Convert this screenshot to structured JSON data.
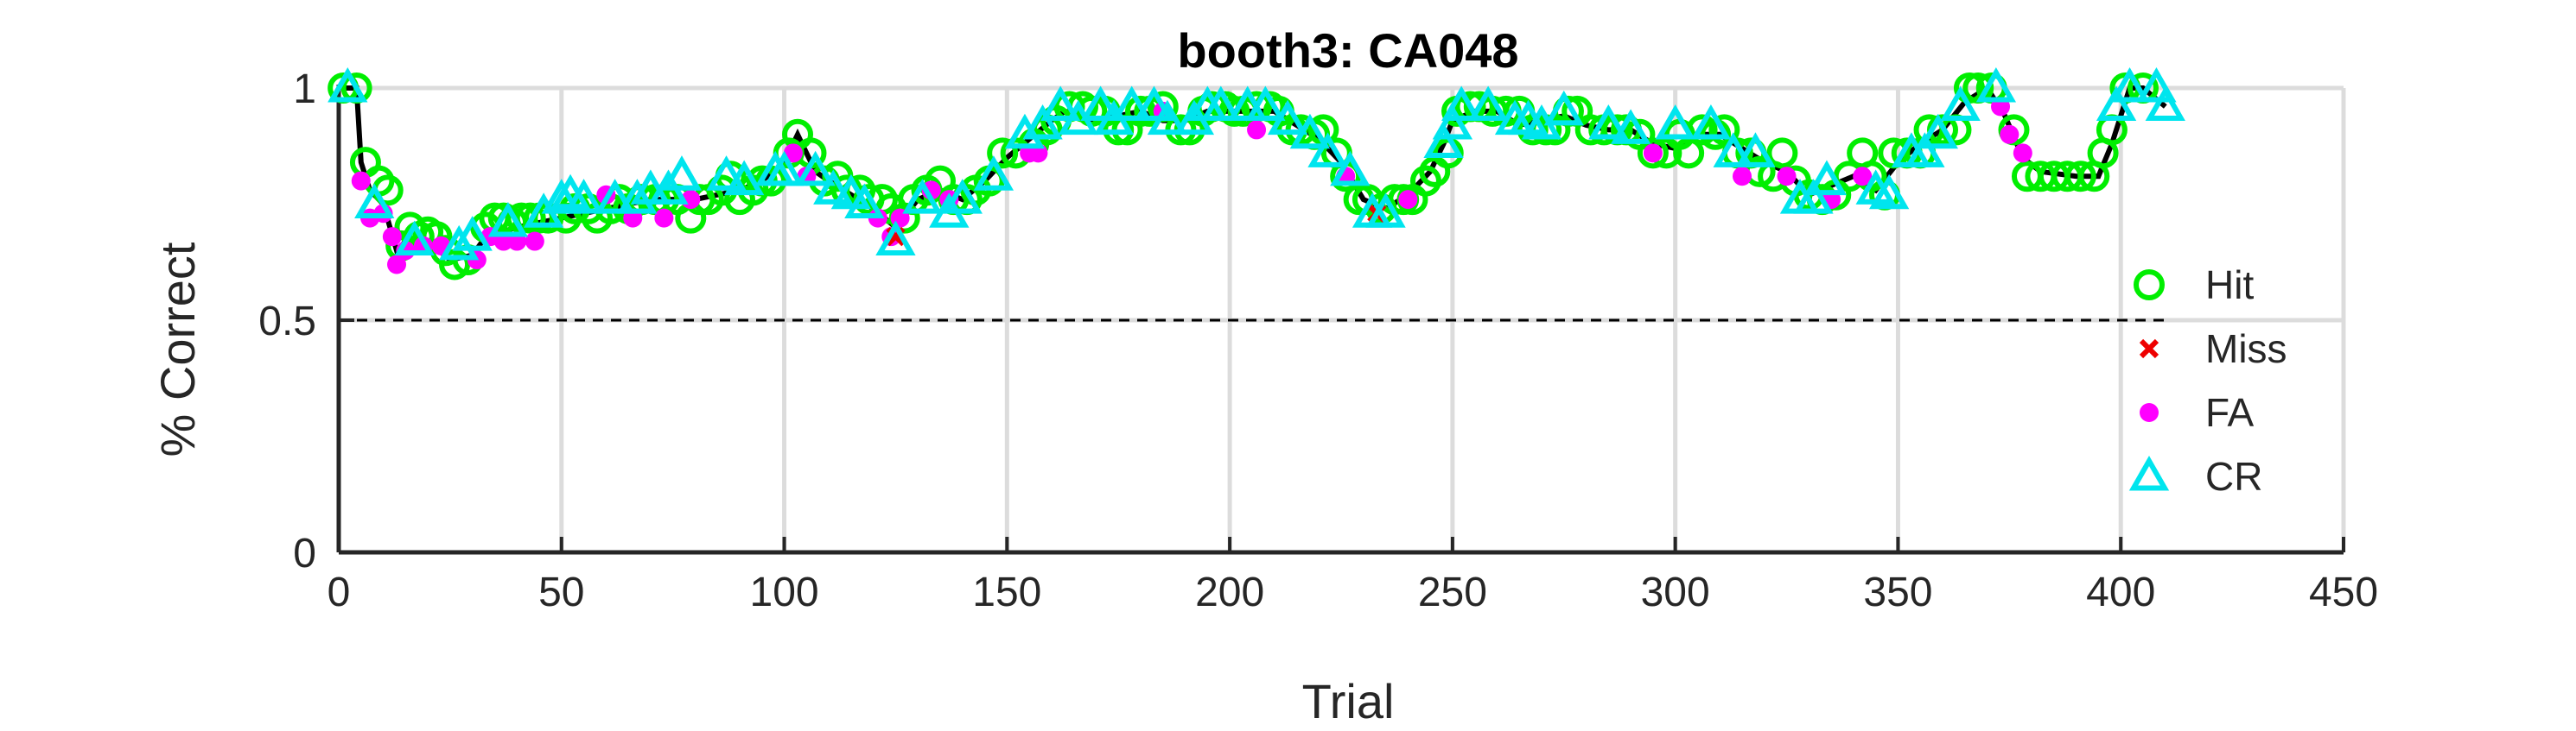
{
  "chart_data": {
    "type": "scatter",
    "title": "booth3: CA048",
    "xlabel": "Trial",
    "ylabel": "% Correct",
    "xlim": [
      0,
      450
    ],
    "ylim": [
      0,
      1
    ],
    "xticks": [
      0,
      50,
      100,
      150,
      200,
      250,
      300,
      350,
      400,
      450
    ],
    "yticks": [
      0,
      0.5,
      1
    ],
    "ytick_labels": [
      "0",
      "0.5",
      "1"
    ],
    "grid": true,
    "reference_line": {
      "y": 0.5,
      "style": "dashed"
    },
    "legend_position": "right",
    "colors": {
      "Hit": "#00ee00",
      "Miss": "#ee0000",
      "FA": "#ff00ff",
      "CR": "#00e5ee",
      "line": "#000000"
    },
    "line_profile": {
      "x": [
        1,
        4,
        5,
        7,
        10,
        13,
        15,
        20,
        25,
        30,
        33,
        40,
        50,
        60,
        70,
        80,
        90,
        95,
        100,
        103,
        107,
        110,
        115,
        120,
        125,
        130,
        135,
        140,
        145,
        150,
        155,
        160,
        163,
        170,
        175,
        180,
        185,
        190,
        195,
        200,
        205,
        210,
        215,
        220,
        225,
        230,
        235,
        240,
        245,
        248,
        250,
        255,
        260,
        265,
        270,
        275,
        280,
        285,
        290,
        295,
        300,
        305,
        310,
        315,
        320,
        325,
        330,
        335,
        340,
        345,
        350,
        355,
        360,
        365,
        370,
        374,
        378,
        382,
        390,
        395,
        398,
        402,
        405,
        410
      ],
      "y": [
        1,
        1,
        0.84,
        0.78,
        0.75,
        0.65,
        0.67,
        0.67,
        0.63,
        0.64,
        0.68,
        0.7,
        0.72,
        0.74,
        0.76,
        0.76,
        0.78,
        0.8,
        0.84,
        0.9,
        0.82,
        0.8,
        0.77,
        0.74,
        0.7,
        0.76,
        0.78,
        0.76,
        0.8,
        0.85,
        0.89,
        0.93,
        0.95,
        0.93,
        0.94,
        0.95,
        0.93,
        0.93,
        0.95,
        0.95,
        0.95,
        0.95,
        0.92,
        0.89,
        0.84,
        0.76,
        0.74,
        0.77,
        0.82,
        0.88,
        0.93,
        0.95,
        0.95,
        0.92,
        0.93,
        0.94,
        0.92,
        0.91,
        0.91,
        0.88,
        0.87,
        0.9,
        0.9,
        0.87,
        0.84,
        0.82,
        0.77,
        0.79,
        0.81,
        0.78,
        0.84,
        0.88,
        0.91,
        0.97,
        1,
        0.94,
        0.85,
        0.82,
        0.81,
        0.81,
        0.88,
        1,
        1,
        0.96
      ]
    },
    "series": [
      {
        "name": "Hit",
        "marker": "circle-open",
        "x": [
          1,
          4,
          6,
          9,
          11,
          14,
          16,
          18,
          20,
          22,
          24,
          26,
          29,
          33,
          35,
          37,
          39,
          41,
          43,
          45,
          47,
          51,
          53,
          56,
          58,
          61,
          63,
          65,
          68,
          71,
          73,
          76,
          79,
          81,
          83,
          86,
          88,
          90,
          93,
          95,
          97,
          101,
          103,
          106,
          109,
          112,
          114,
          117,
          119,
          122,
          124,
          127,
          129,
          132,
          135,
          138,
          141,
          143,
          146,
          149,
          152,
          156,
          159,
          161,
          164,
          167,
          169,
          172,
          175,
          177,
          180,
          182,
          185,
          189,
          191,
          194,
          196,
          199,
          201,
          203,
          206,
          209,
          211,
          214,
          216,
          219,
          221,
          224,
          226,
          229,
          231,
          234,
          237,
          239,
          241,
          244,
          246,
          249,
          251,
          254,
          256,
          259,
          262,
          265,
          268,
          271,
          273,
          276,
          278,
          281,
          284,
          287,
          289,
          292,
          295,
          298,
          301,
          303,
          306,
          309,
          311,
          314,
          317,
          319,
          322,
          324,
          327,
          330,
          333,
          336,
          339,
          342,
          344,
          347,
          349,
          352,
          355,
          357,
          360,
          363,
          366,
          368,
          371,
          376,
          379,
          382,
          385,
          388,
          391,
          394,
          396,
          398,
          401,
          405
        ],
        "y": [
          1,
          1,
          0.84,
          0.8,
          0.78,
          0.66,
          0.7,
          0.68,
          0.69,
          0.68,
          0.65,
          0.62,
          0.63,
          0.7,
          0.72,
          0.72,
          0.71,
          0.72,
          0.72,
          0.72,
          0.72,
          0.72,
          0.74,
          0.74,
          0.72,
          0.74,
          0.76,
          0.74,
          0.76,
          0.76,
          0.76,
          0.76,
          0.72,
          0.76,
          0.76,
          0.78,
          0.81,
          0.76,
          0.78,
          0.8,
          0.8,
          0.86,
          0.9,
          0.86,
          0.8,
          0.81,
          0.78,
          0.78,
          0.76,
          0.76,
          0.74,
          0.72,
          0.76,
          0.78,
          0.8,
          0.76,
          0.76,
          0.78,
          0.8,
          0.86,
          0.86,
          0.88,
          0.91,
          0.93,
          0.96,
          0.96,
          0.95,
          0.95,
          0.91,
          0.91,
          0.95,
          0.95,
          0.96,
          0.91,
          0.91,
          0.95,
          0.96,
          0.96,
          0.95,
          0.95,
          0.96,
          0.96,
          0.95,
          0.91,
          0.91,
          0.9,
          0.91,
          0.86,
          0.81,
          0.76,
          0.76,
          0.74,
          0.76,
          0.76,
          0.76,
          0.8,
          0.82,
          0.86,
          0.95,
          0.96,
          0.96,
          0.95,
          0.95,
          0.95,
          0.91,
          0.91,
          0.91,
          0.95,
          0.95,
          0.91,
          0.91,
          0.91,
          0.91,
          0.9,
          0.86,
          0.86,
          0.9,
          0.86,
          0.91,
          0.9,
          0.91,
          0.86,
          0.86,
          0.82,
          0.81,
          0.86,
          0.8,
          0.77,
          0.76,
          0.77,
          0.81,
          0.86,
          0.81,
          0.77,
          0.86,
          0.86,
          0.86,
          0.91,
          0.91,
          0.91,
          1,
          1,
          1,
          0.91,
          0.81,
          0.81,
          0.81,
          0.81,
          0.81,
          0.81,
          0.86,
          0.91,
          1,
          1
        ]
      },
      {
        "name": "Miss",
        "marker": "x",
        "x": [
          125,
          233
        ],
        "y": [
          0.68,
          0.73
        ]
      },
      {
        "name": "FA",
        "marker": "dot",
        "x": [
          5,
          7,
          10,
          12,
          13,
          15,
          19,
          23,
          31,
          34,
          37,
          40,
          44,
          60,
          66,
          73,
          79,
          102,
          105,
          121,
          124,
          126,
          133,
          137,
          155,
          157,
          185,
          206,
          226,
          240,
          295,
          315,
          325,
          335,
          342,
          373,
          375,
          378
        ],
        "y": [
          0.8,
          0.72,
          0.73,
          0.68,
          0.62,
          0.65,
          0.66,
          0.66,
          0.63,
          0.68,
          0.67,
          0.67,
          0.67,
          0.77,
          0.72,
          0.72,
          0.76,
          0.86,
          0.81,
          0.72,
          0.68,
          0.72,
          0.78,
          0.76,
          0.86,
          0.86,
          0.95,
          0.91,
          0.81,
          0.76,
          0.86,
          0.81,
          0.81,
          0.76,
          0.81,
          0.96,
          0.9,
          0.86
        ]
      },
      {
        "name": "CR",
        "marker": "triangle-open",
        "x": [
          2,
          8,
          17,
          27,
          30,
          38,
          46,
          50,
          52,
          55,
          62,
          67,
          70,
          74,
          77,
          87,
          91,
          98,
          100,
          107,
          111,
          115,
          118,
          125,
          131,
          137,
          140,
          147,
          154,
          158,
          162,
          166,
          171,
          174,
          178,
          183,
          186,
          192,
          195,
          198,
          204,
          208,
          213,
          218,
          222,
          227,
          232,
          235,
          248,
          250,
          252,
          258,
          264,
          267,
          270,
          275,
          285,
          290,
          300,
          308,
          313,
          318,
          328,
          331,
          334,
          345,
          348,
          353,
          356,
          359,
          364,
          372,
          399,
          402,
          408,
          410
        ],
        "y": [
          1,
          0.75,
          0.67,
          0.66,
          0.68,
          0.71,
          0.73,
          0.76,
          0.77,
          0.76,
          0.76,
          0.76,
          0.78,
          0.78,
          0.81,
          0.81,
          0.8,
          0.82,
          0.82,
          0.82,
          0.78,
          0.77,
          0.75,
          0.67,
          0.76,
          0.73,
          0.76,
          0.81,
          0.9,
          0.92,
          0.96,
          0.93,
          0.96,
          0.93,
          0.96,
          0.96,
          0.93,
          0.93,
          0.96,
          0.96,
          0.96,
          0.96,
          0.93,
          0.9,
          0.86,
          0.82,
          0.73,
          0.73,
          0.88,
          0.92,
          0.96,
          0.96,
          0.93,
          0.93,
          0.92,
          0.95,
          0.92,
          0.91,
          0.92,
          0.92,
          0.86,
          0.86,
          0.76,
          0.76,
          0.8,
          0.78,
          0.77,
          0.86,
          0.86,
          0.9,
          0.96,
          1,
          0.96,
          1,
          1,
          0.96
        ]
      }
    ]
  }
}
